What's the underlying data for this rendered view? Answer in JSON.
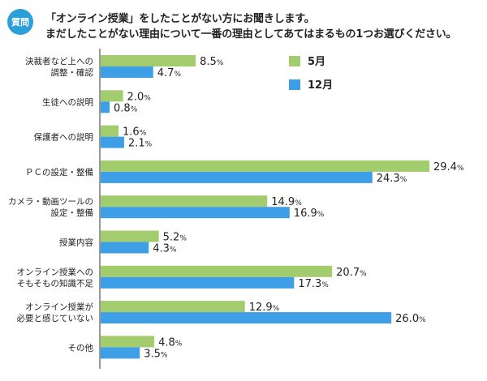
{
  "question": {
    "badge": "質問",
    "line1": "「オンライン授業」をしたことがない方にお聞きします。",
    "line2": "まだしたことがない理由について一番の理由としてあてはまるもの1つお選びください。"
  },
  "colors": {
    "may": "#a3cc6e",
    "dec": "#3f9fe6",
    "axis": "#333333"
  },
  "chart_data": {
    "type": "bar",
    "orientation": "horizontal",
    "title": "",
    "xlabel": "",
    "ylabel": "",
    "xlim": [
      0,
      30
    ],
    "unit": "%",
    "legend_position": "top-right",
    "categories": [
      [
        "決裁者など上への",
        "調整・確認"
      ],
      [
        "生徒への説明"
      ],
      [
        "保護者への説明"
      ],
      [
        "ＰＣの設定・整備"
      ],
      [
        "カメラ・動画ツールの",
        "設定・整備"
      ],
      [
        "授業内容"
      ],
      [
        "オンライン授業への",
        "そもそもの知識不足"
      ],
      [
        "オンライン授業が",
        "必要と感じていない"
      ],
      [
        "その他"
      ]
    ],
    "series": [
      {
        "name": "5月",
        "values": [
          8.5,
          2.0,
          1.6,
          29.4,
          14.9,
          5.2,
          20.7,
          12.9,
          4.8
        ]
      },
      {
        "name": "12月",
        "values": [
          4.7,
          0.8,
          2.1,
          24.3,
          16.9,
          4.3,
          17.3,
          26.0,
          3.5
        ]
      }
    ]
  }
}
